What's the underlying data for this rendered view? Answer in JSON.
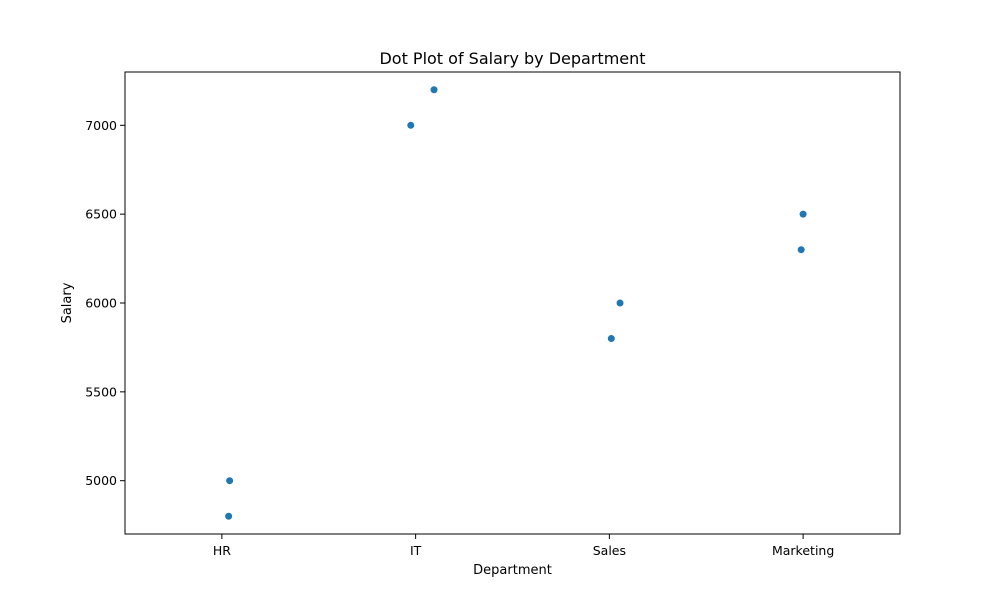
{
  "chart_data": {
    "type": "scatter",
    "title": "Dot Plot of Salary by Department",
    "xlabel": "Department",
    "ylabel": "Salary",
    "categories": [
      "HR",
      "IT",
      "Sales",
      "Marketing"
    ],
    "yticks": [
      5000,
      5500,
      6000,
      6500,
      7000
    ],
    "ylim": [
      4700,
      7300
    ],
    "grid": false,
    "legend": "none",
    "marker_color": "#1f77b4",
    "points": [
      {
        "category": "HR",
        "value": 5000
      },
      {
        "category": "HR",
        "value": 4800
      },
      {
        "category": "IT",
        "value": 7000
      },
      {
        "category": "IT",
        "value": 7200
      },
      {
        "category": "Sales",
        "value": 5800
      },
      {
        "category": "Sales",
        "value": 6000
      },
      {
        "category": "Marketing",
        "value": 6300
      },
      {
        "category": "Marketing",
        "value": 6500
      }
    ]
  }
}
